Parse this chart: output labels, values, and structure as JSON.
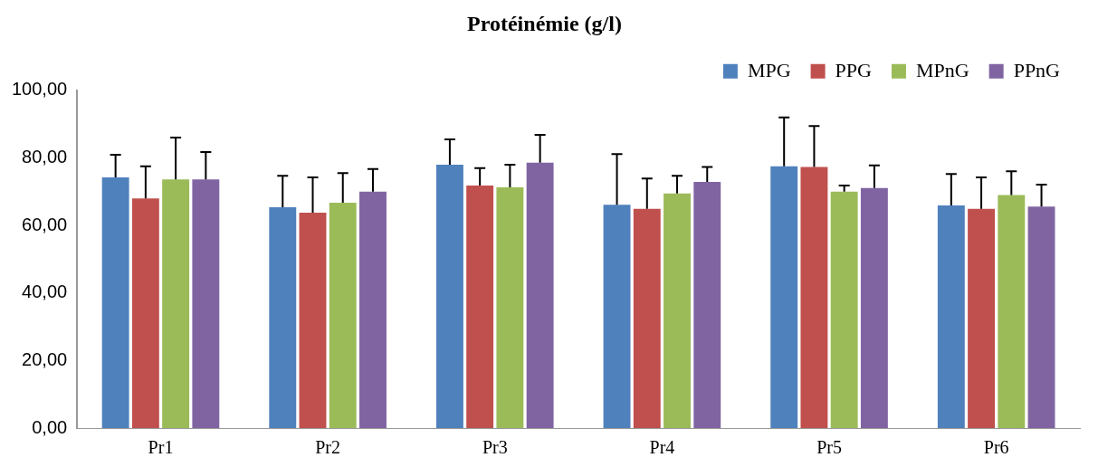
{
  "chart_data": {
    "type": "bar",
    "title": "Protéinémie (g/l)",
    "categories": [
      "Pr1",
      "Pr2",
      "Pr3",
      "Pr4",
      "Pr5",
      "Pr6"
    ],
    "series": [
      {
        "name": "MPG",
        "color": "#4f81bd",
        "values": [
          74.2,
          65.4,
          78.0,
          66.1,
          77.5,
          65.9
        ],
        "errors": [
          [
            74.2,
            80.9
          ],
          [
            65.4,
            74.7
          ],
          [
            78.0,
            85.5
          ],
          [
            66.1,
            81.1
          ],
          [
            77.5,
            92.0
          ],
          [
            65.9,
            75.2
          ]
        ]
      },
      {
        "name": "PPG",
        "color": "#c0504d",
        "values": [
          68.0,
          63.8,
          71.8,
          64.9,
          77.3,
          64.9
        ],
        "errors": [
          [
            68.0,
            77.5
          ],
          [
            63.8,
            74.2
          ],
          [
            71.8,
            77.0
          ],
          [
            64.9,
            73.9
          ],
          [
            77.3,
            89.4
          ],
          [
            64.9,
            74.2
          ]
        ]
      },
      {
        "name": "MPnG",
        "color": "#9bbb59",
        "values": [
          73.6,
          66.7,
          71.3,
          69.5,
          70.0,
          69.0
        ],
        "errors": [
          [
            73.6,
            86.0
          ],
          [
            66.7,
            75.5
          ],
          [
            71.3,
            78.0
          ],
          [
            69.5,
            74.7
          ],
          [
            70.0,
            71.8
          ],
          [
            69.0,
            76.0
          ]
        ]
      },
      {
        "name": "PPnG",
        "color": "#8064a2",
        "values": [
          73.6,
          70.0,
          78.6,
          72.9,
          71.1,
          65.6
        ],
        "errors": [
          [
            73.6,
            81.7
          ],
          [
            70.0,
            76.7
          ],
          [
            78.6,
            86.8
          ],
          [
            72.9,
            77.3
          ],
          [
            71.1,
            77.8
          ],
          [
            65.6,
            72.1
          ]
        ]
      }
    ],
    "ylim": [
      0,
      100
    ],
    "yticks": [
      {
        "value": 0,
        "label": "0,00"
      },
      {
        "value": 20,
        "label": "20,00"
      },
      {
        "value": 40,
        "label": "40,00"
      },
      {
        "value": 60,
        "label": "60,00"
      },
      {
        "value": 80,
        "label": "80,00"
      },
      {
        "value": 100,
        "label": "100,00"
      }
    ],
    "grid": false,
    "legend": "top right"
  }
}
